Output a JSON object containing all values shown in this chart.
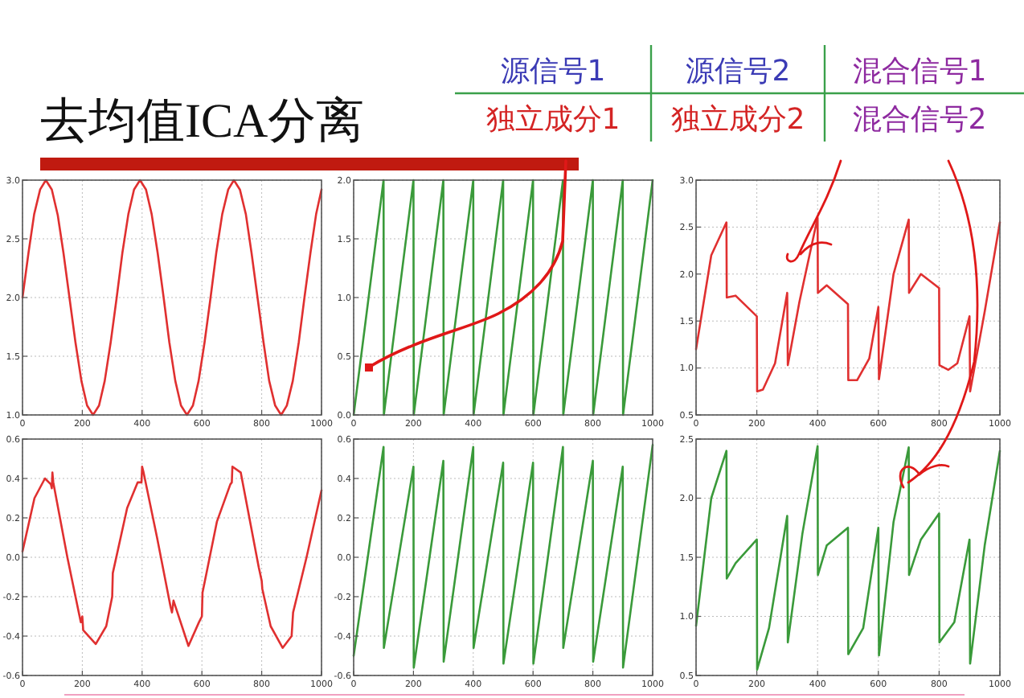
{
  "chart_data": [
    {
      "type": "line",
      "title": "去均值ICA分离",
      "annotations": [
        "源信号1",
        "源信号2",
        "混合信号1",
        "独立成分1",
        "独立成分2",
        "混合信号2"
      ],
      "grid": true,
      "xlim": [
        0,
        1000
      ],
      "xticks": [
        0,
        200,
        400,
        600,
        800,
        1000
      ],
      "ylim": [
        1.0,
        3.0
      ],
      "yticks": [
        {
          "value": 1.0,
          "label": "1.0"
        },
        1.5,
        {
          "value": 2.0,
          "label": "2.0"
        },
        2.5,
        {
          "value": 3.0,
          "label": "3.0"
        }
      ],
      "series": [
        {
          "color": "#e03030",
          "x": [
            0,
            20,
            39,
            59,
            78,
            98,
            118,
            137,
            157,
            177,
            197,
            216,
            236,
            256,
            275,
            295,
            315,
            334,
            354,
            373,
            393,
            413,
            432,
            452,
            472,
            491,
            511,
            530,
            550,
            570,
            589,
            609,
            629,
            648,
            668,
            688,
            707,
            727,
            747,
            766,
            786,
            806,
            825,
            845,
            865,
            884,
            904,
            924,
            943,
            963,
            982,
            1000
          ],
          "values": [
            2.0,
            2.38,
            2.71,
            2.92,
            3.0,
            2.92,
            2.7,
            2.38,
            2.0,
            1.62,
            1.29,
            1.08,
            1.0,
            1.08,
            1.29,
            1.62,
            2.0,
            2.38,
            2.71,
            2.92,
            3.0,
            2.92,
            2.71,
            2.38,
            2.0,
            1.62,
            1.29,
            1.08,
            1.0,
            1.08,
            1.29,
            1.62,
            2.0,
            2.38,
            2.71,
            2.92,
            3.0,
            2.92,
            2.71,
            2.38,
            2.0,
            1.62,
            1.29,
            1.08,
            1.0,
            1.08,
            1.29,
            1.62,
            2.0,
            2.38,
            2.71,
            2.92
          ]
        }
      ]
    },
    {
      "type": "line",
      "grid": true,
      "xlim": [
        0,
        1000
      ],
      "xticks": [
        0,
        200,
        400,
        600,
        800,
        1000
      ],
      "ylim": [
        0.0,
        2.0
      ],
      "yticks": [
        {
          "value": 0.0,
          "label": "0.0"
        },
        0.5,
        {
          "value": 1.0,
          "label": "1.0"
        },
        1.5,
        {
          "value": 2.0,
          "label": "2.0"
        }
      ],
      "series": [
        {
          "color": "#3a9a3a",
          "x": [
            0,
            100,
            101,
            200,
            201,
            300,
            301,
            400,
            401,
            500,
            501,
            600,
            601,
            700,
            701,
            800,
            801,
            900,
            901,
            1000
          ],
          "values": [
            0,
            2,
            0,
            2,
            0,
            2,
            0,
            2,
            0,
            2,
            0,
            2,
            0,
            2,
            0,
            2,
            0,
            2,
            0,
            2
          ]
        }
      ]
    },
    {
      "type": "line",
      "grid": true,
      "xlim": [
        0,
        1000
      ],
      "xticks": [
        0,
        200,
        400,
        600,
        800,
        1000
      ],
      "ylim": [
        0.5,
        3.0
      ],
      "yticks": [
        0.5,
        {
          "value": 1.0,
          "label": "1.0"
        },
        1.5,
        {
          "value": 2.0,
          "label": "2.0"
        },
        2.5,
        {
          "value": 3.0,
          "label": "3.0"
        }
      ],
      "series": [
        {
          "color": "#e03030",
          "x": [
            0,
            50,
            100,
            101,
            130,
            200,
            201,
            220,
            260,
            300,
            302,
            340,
            400,
            401,
            430,
            500,
            501,
            530,
            570,
            600,
            602,
            650,
            700,
            701,
            740,
            800,
            801,
            830,
            860,
            900,
            902,
            950,
            1000
          ],
          "values": [
            1.2,
            2.2,
            2.55,
            1.75,
            1.77,
            1.55,
            0.75,
            0.77,
            1.05,
            1.8,
            1.03,
            1.7,
            2.6,
            1.8,
            1.88,
            1.68,
            0.87,
            0.87,
            1.1,
            1.65,
            0.88,
            2.0,
            2.58,
            1.8,
            2.0,
            1.85,
            1.03,
            0.98,
            1.05,
            1.55,
            0.75,
            1.6,
            2.55
          ]
        }
      ]
    },
    {
      "type": "line",
      "grid": true,
      "xlim": [
        0,
        1000
      ],
      "xticks": [
        0,
        200,
        400,
        600,
        800,
        1000
      ],
      "ylim": [
        -0.6,
        0.6
      ],
      "yticks": [
        -0.6,
        -0.4,
        -0.2,
        {
          "value": 0.0,
          "label": "0.0"
        },
        0.2,
        0.4,
        0.6
      ],
      "series": [
        {
          "color": "#e03030",
          "x": [
            0,
            40,
            75,
            95,
            98,
            100,
            103,
            150,
            195,
            200,
            203,
            245,
            280,
            300,
            302,
            350,
            385,
            398,
            400,
            405,
            450,
            495,
            500,
            505,
            555,
            590,
            600,
            602,
            650,
            695,
            700,
            702,
            730,
            790,
            800,
            802,
            830,
            870,
            900,
            905,
            950,
            1000
          ],
          "values": [
            0.03,
            0.3,
            0.4,
            0.37,
            0.35,
            0.43,
            0.38,
            0.0,
            -0.33,
            -0.3,
            -0.37,
            -0.44,
            -0.35,
            -0.2,
            -0.08,
            0.25,
            0.38,
            0.38,
            0.46,
            0.43,
            0.1,
            -0.25,
            -0.28,
            -0.22,
            -0.45,
            -0.33,
            -0.3,
            -0.18,
            0.18,
            0.37,
            0.38,
            0.46,
            0.43,
            -0.05,
            -0.12,
            -0.16,
            -0.35,
            -0.46,
            -0.4,
            -0.28,
            0.0,
            0.34
          ]
        }
      ]
    },
    {
      "type": "line",
      "grid": true,
      "xlim": [
        0,
        1000
      ],
      "xticks": [
        0,
        200,
        400,
        600,
        800,
        1000
      ],
      "ylim": [
        -0.6,
        0.6
      ],
      "yticks": [
        -0.6,
        -0.4,
        -0.2,
        {
          "value": 0.0,
          "label": "0.0"
        },
        0.2,
        0.4,
        0.6
      ],
      "series": [
        {
          "color": "#3a9a3a",
          "x": [
            0,
            100,
            101,
            200,
            201,
            300,
            301,
            400,
            401,
            500,
            501,
            600,
            601,
            700,
            701,
            800,
            801,
            900,
            901,
            1000
          ],
          "values": [
            -0.5,
            0.56,
            -0.46,
            0.46,
            -0.56,
            0.49,
            -0.53,
            0.56,
            -0.46,
            0.48,
            -0.54,
            0.48,
            -0.54,
            0.56,
            -0.46,
            0.49,
            -0.53,
            0.46,
            -0.56,
            0.57
          ]
        }
      ]
    },
    {
      "type": "line",
      "grid": true,
      "xlim": [
        0,
        1000
      ],
      "xticks": [
        0,
        200,
        400,
        600,
        800,
        1000
      ],
      "ylim": [
        0.5,
        2.5
      ],
      "yticks": [
        0.5,
        {
          "value": 1.0,
          "label": "1.0"
        },
        1.5,
        {
          "value": 2.0,
          "label": "2.0"
        },
        2.5
      ],
      "series": [
        {
          "color": "#3a9a3a",
          "x": [
            0,
            50,
            100,
            101,
            130,
            200,
            201,
            240,
            300,
            302,
            350,
            400,
            401,
            430,
            500,
            501,
            550,
            600,
            602,
            650,
            700,
            701,
            740,
            800,
            801,
            850,
            900,
            902,
            950,
            1000
          ],
          "values": [
            0.92,
            2.0,
            2.4,
            1.32,
            1.45,
            1.65,
            0.55,
            0.9,
            1.85,
            0.78,
            1.7,
            2.44,
            1.35,
            1.6,
            1.75,
            0.68,
            0.9,
            1.75,
            0.67,
            1.8,
            2.43,
            1.35,
            1.65,
            1.87,
            0.78,
            0.95,
            1.65,
            0.6,
            1.6,
            2.4
          ]
        }
      ]
    }
  ]
}
